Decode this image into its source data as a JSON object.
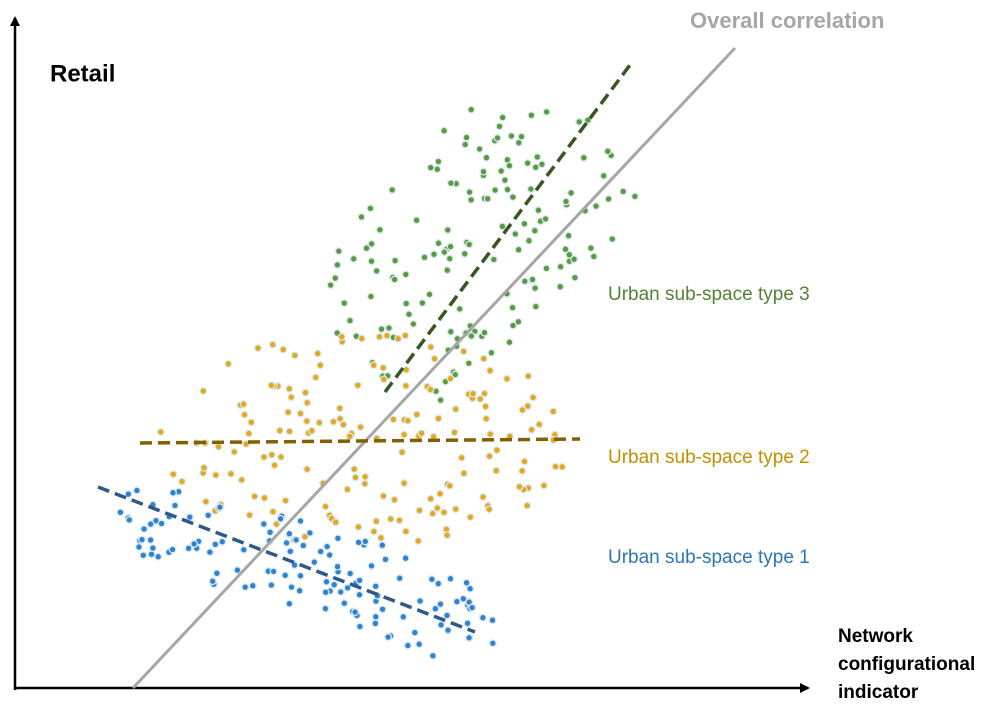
{
  "y_axis_label": "Retail",
  "x_axis_label_lines": [
    "Network",
    "configurational",
    "indicator"
  ],
  "trend_label": "Overall correlation",
  "groups": [
    {
      "label": "Urban sub-space type 3"
    },
    {
      "label": "Urban sub-space type 2"
    },
    {
      "label": "Urban sub-space type 1"
    }
  ]
}
